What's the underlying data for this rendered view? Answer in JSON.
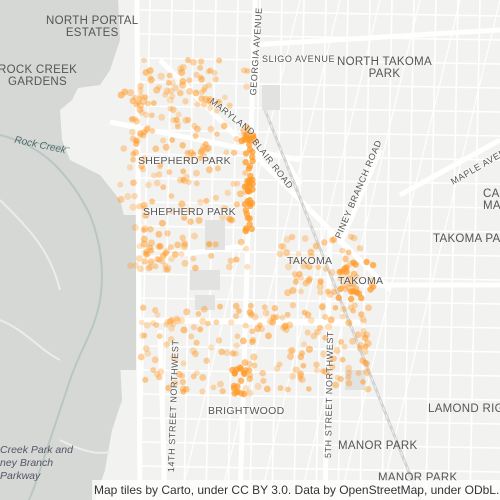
{
  "map": {
    "attribution": "Map tiles by Carto, under CC BY 3.0. Data by OpenStreetMap, under ODbL.",
    "marker_color": "#ff9b2a",
    "park_color": "#d5d8d5",
    "labels": {
      "north_portal_estates": "NORTH PORTAL\nESTATES",
      "rock_creek_gardens": "ROCK CREEK\nGARDENS",
      "north_takoma_park": "NORTH TAKOMA\nPARK",
      "shepherd_park_1": "SHEPHERD PARK",
      "shepherd_park_2": "SHEPHERD PARK",
      "takoma": "TAKOMA",
      "takoma_2": "TAKOMA",
      "takoma_park": "TAKOMA PA",
      "brightwood": "BRIGHTWOOD",
      "lamond_riggs": "LAMOND RIG",
      "manor_park": "MANOR PARK",
      "manor_park_2": "MANOR PARK",
      "ca": "CA\nMA",
      "rock_creek": "Rock Creek",
      "creek_park": "Creek Park and\nney Branch\nParkway"
    },
    "streets": {
      "georgia_avenue": "GEORGIA AVENUE",
      "sligo_avenue": "SLIGO AVENUE",
      "maryland": "MARYLAND",
      "blair_road": "BLAIR ROAD",
      "piney_branch_road": "PINEY BRANCH ROAD",
      "maple_avenue": "MAPLE AVENUE",
      "14th_street": "14TH STREET NORTHWEST",
      "5th_street": "5TH STREET NORTHWEST"
    }
  }
}
